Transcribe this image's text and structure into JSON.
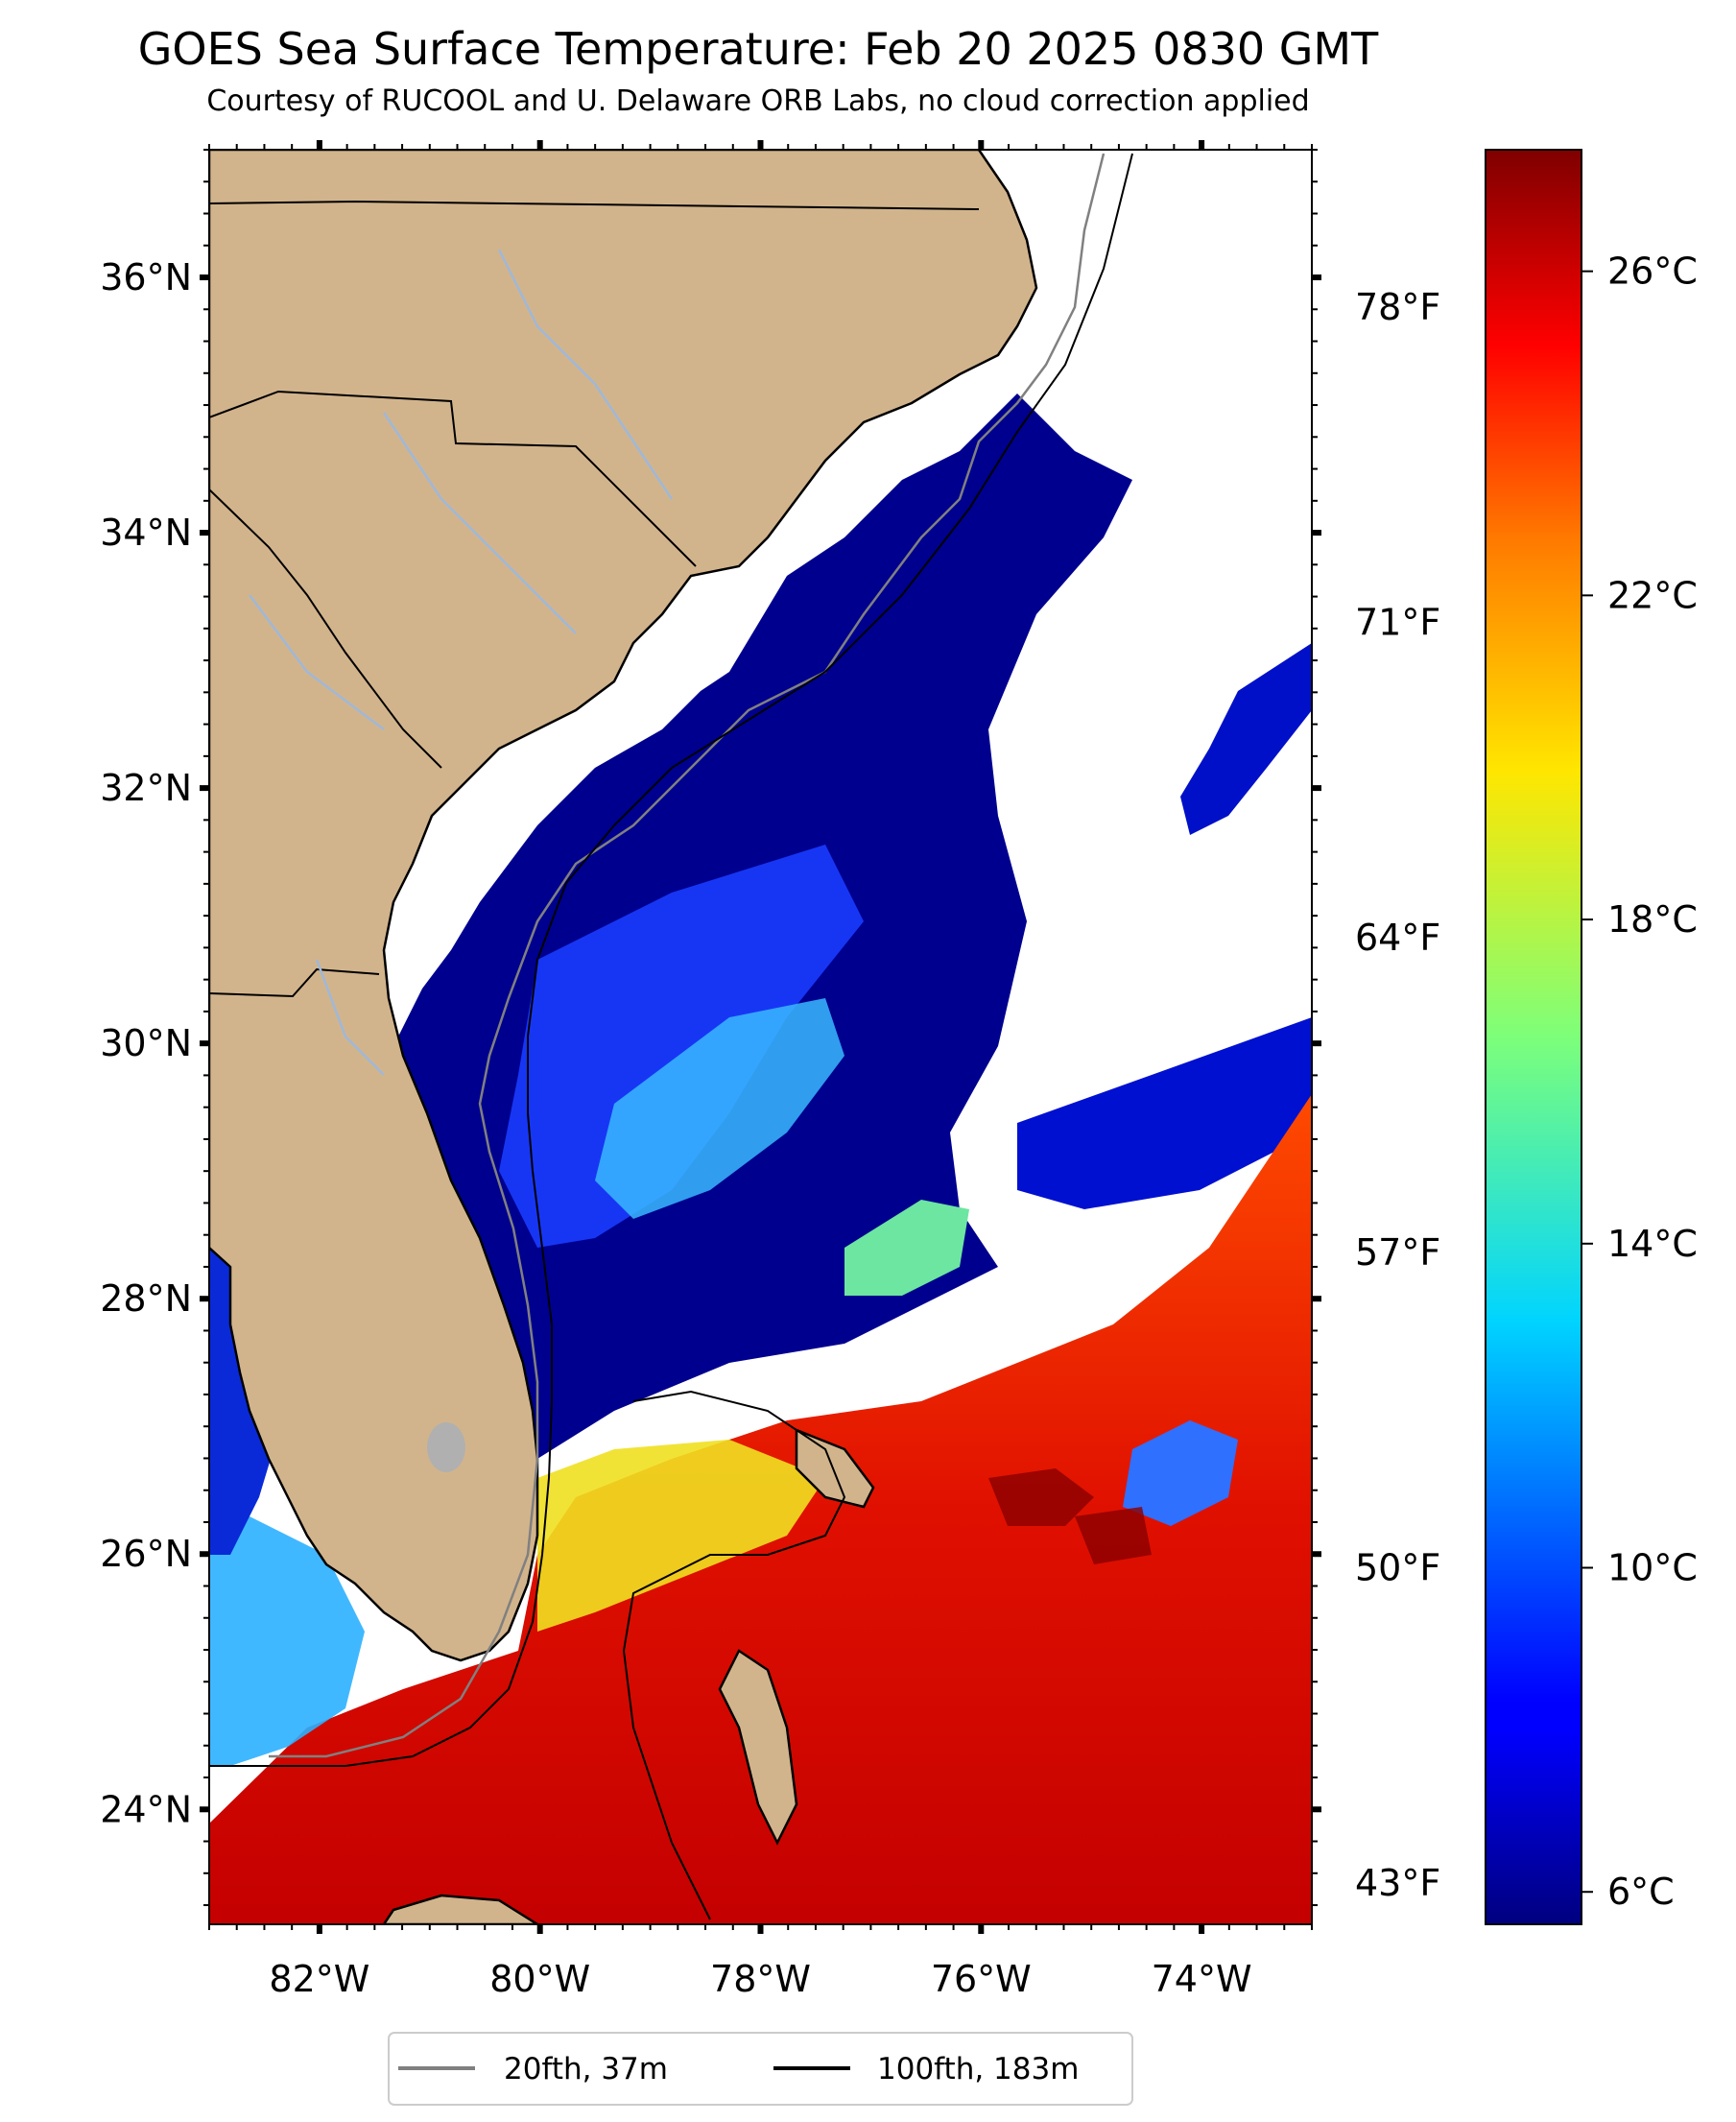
{
  "title": "GOES Sea Surface Temperature: Feb 20 2025 0830 GMT",
  "subtitle": "Courtesy of RUCOOL and U. Delaware ORB Labs, no cloud correction applied",
  "map": {
    "lon_range": [
      -83,
      -73
    ],
    "lat_range": [
      23.1,
      37.0
    ],
    "lon_ticks": [
      {
        "value": -82,
        "label": "82°W"
      },
      {
        "value": -80,
        "label": "80°W"
      },
      {
        "value": -78,
        "label": "78°W"
      },
      {
        "value": -76,
        "label": "76°W"
      },
      {
        "value": -74,
        "label": "74°W"
      }
    ],
    "lat_ticks": [
      {
        "value": 24,
        "label": "24°N"
      },
      {
        "value": 26,
        "label": "26°N"
      },
      {
        "value": 28,
        "label": "28°N"
      },
      {
        "value": 30,
        "label": "30°N"
      },
      {
        "value": 32,
        "label": "32°N"
      },
      {
        "value": 34,
        "label": "34°N"
      },
      {
        "value": 36,
        "label": "36°N"
      }
    ],
    "land_color": "#d2b48c",
    "cloud_color": "#ffffff"
  },
  "fahrenheit_axis": {
    "ticks": [
      {
        "value": 43,
        "label": "43°F"
      },
      {
        "value": 50,
        "label": "50°F"
      },
      {
        "value": 57,
        "label": "57°F"
      },
      {
        "value": 64,
        "label": "64°F"
      },
      {
        "value": 71,
        "label": "71°F"
      },
      {
        "value": 78,
        "label": "78°F"
      }
    ]
  },
  "colorbar": {
    "colormap": "jet",
    "range_c": [
      5.6,
      27.5
    ],
    "ticks": [
      {
        "value": 6,
        "label": "6°C"
      },
      {
        "value": 10,
        "label": "10°C"
      },
      {
        "value": 14,
        "label": "14°C"
      },
      {
        "value": 18,
        "label": "18°C"
      },
      {
        "value": 22,
        "label": "22°C"
      },
      {
        "value": 26,
        "label": "26°C"
      }
    ]
  },
  "legend": {
    "items": [
      {
        "label": "20fth, 37m",
        "color": "#808080"
      },
      {
        "label": "100fth, 183m",
        "color": "#000000"
      }
    ]
  }
}
